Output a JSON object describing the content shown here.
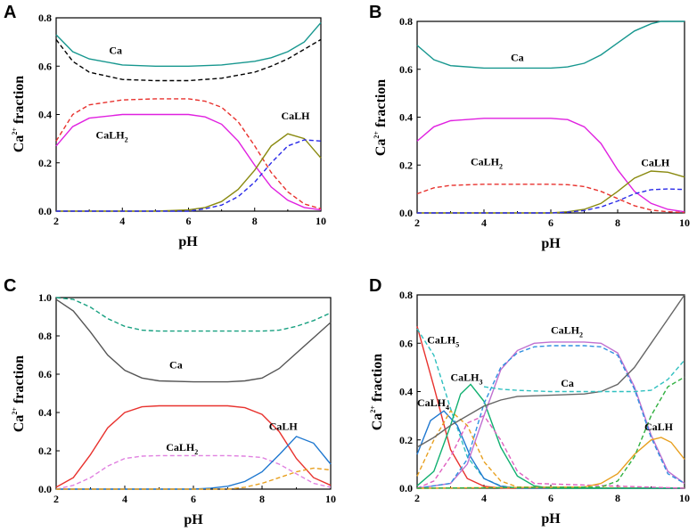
{
  "chart_data": [
    {
      "panel": "A",
      "type": "line",
      "xlabel": "pH",
      "ylabel": {
        "base": "Ca",
        "sup": "2+",
        "rest": " fraction"
      },
      "xlim": [
        2,
        10
      ],
      "ylim": [
        0,
        0.8
      ],
      "xticks": [
        "2",
        "4",
        "6",
        "8",
        "10"
      ],
      "yticks": [
        "0.0",
        "0.2",
        "0.4",
        "0.6",
        "0.8"
      ],
      "annotations": [
        {
          "base": "Ca",
          "sub": "",
          "x": 3.6,
          "y": 0.65
        },
        {
          "base": "CaLH",
          "sub": "2",
          "x": 3.2,
          "y": 0.3
        },
        {
          "base": "CaLH",
          "sub": "",
          "x": 8.8,
          "y": 0.38
        }
      ],
      "series": [
        {
          "name": "Ca",
          "color": "#17978f",
          "dash": false,
          "x": [
            2,
            2.5,
            3,
            4,
            5,
            6,
            7,
            8,
            8.5,
            9,
            9.5,
            10
          ],
          "y": [
            0.73,
            0.66,
            0.63,
            0.605,
            0.6,
            0.6,
            0.605,
            0.62,
            0.635,
            0.66,
            0.7,
            0.78
          ]
        },
        {
          "name": "Ca (dashed)",
          "color": "#000000",
          "dash": true,
          "x": [
            2,
            2.5,
            3,
            4,
            5,
            6,
            7,
            8,
            8.5,
            9,
            9.5,
            10
          ],
          "y": [
            0.71,
            0.62,
            0.575,
            0.545,
            0.54,
            0.54,
            0.55,
            0.575,
            0.6,
            0.63,
            0.67,
            0.71
          ]
        },
        {
          "name": "CaLH2",
          "color": "#e020e0",
          "dash": false,
          "x": [
            2,
            2.5,
            3,
            4,
            5,
            6,
            6.5,
            7,
            7.5,
            8,
            8.5,
            9,
            9.5,
            10
          ],
          "y": [
            0.27,
            0.35,
            0.385,
            0.4,
            0.4,
            0.4,
            0.39,
            0.36,
            0.29,
            0.19,
            0.1,
            0.045,
            0.015,
            0.005
          ]
        },
        {
          "name": "CaLH2 (dashed)",
          "color": "#e8322e",
          "dash": true,
          "x": [
            2,
            2.5,
            3,
            4,
            5,
            6,
            6.5,
            7,
            7.5,
            8,
            8.5,
            9,
            9.5,
            10
          ],
          "y": [
            0.29,
            0.4,
            0.44,
            0.46,
            0.465,
            0.465,
            0.455,
            0.43,
            0.37,
            0.27,
            0.16,
            0.08,
            0.03,
            0.01
          ]
        },
        {
          "name": "CaLH",
          "color": "#8a8a10",
          "dash": false,
          "x": [
            2,
            5,
            6,
            6.5,
            7,
            7.5,
            8,
            8.5,
            9,
            9.5,
            10
          ],
          "y": [
            0,
            0,
            0.005,
            0.015,
            0.04,
            0.09,
            0.17,
            0.27,
            0.32,
            0.3,
            0.22
          ]
        },
        {
          "name": "CaLH (dashed)",
          "color": "#2a2ae8",
          "dash": true,
          "x": [
            2,
            6,
            6.5,
            7,
            7.5,
            8,
            8.5,
            9,
            9.5,
            10
          ],
          "y": [
            0,
            0,
            0.01,
            0.025,
            0.06,
            0.12,
            0.2,
            0.27,
            0.295,
            0.29
          ]
        }
      ]
    },
    {
      "panel": "B",
      "type": "line",
      "xlabel": "pH",
      "ylabel": {
        "base": "Ca",
        "sup": "2+",
        "rest": " fraction"
      },
      "xlim": [
        2,
        10
      ],
      "ylim": [
        0,
        0.8
      ],
      "xticks": [
        "2",
        "4",
        "6",
        "8",
        "10"
      ],
      "yticks": [
        "0.0",
        "0.2",
        "0.4",
        "0.6",
        "0.8"
      ],
      "annotations": [
        {
          "base": "Ca",
          "sub": "",
          "x": 4.8,
          "y": 0.635
        },
        {
          "base": "CaLH",
          "sub": "2",
          "x": 3.6,
          "y": 0.2
        },
        {
          "base": "CaLH",
          "sub": "",
          "x": 8.7,
          "y": 0.195
        }
      ],
      "series": [
        {
          "name": "Ca",
          "color": "#17978f",
          "dash": false,
          "x": [
            2,
            2.5,
            3,
            4,
            5,
            6,
            6.5,
            7,
            7.5,
            8,
            8.5,
            9,
            9.3,
            10
          ],
          "y": [
            0.7,
            0.64,
            0.615,
            0.605,
            0.605,
            0.605,
            0.61,
            0.625,
            0.66,
            0.71,
            0.76,
            0.79,
            0.8,
            0.8
          ]
        },
        {
          "name": "CaLH2",
          "color": "#e020e0",
          "dash": false,
          "x": [
            2,
            2.5,
            3,
            4,
            5,
            6,
            6.5,
            7,
            7.5,
            8,
            8.5,
            9,
            9.5,
            10
          ],
          "y": [
            0.3,
            0.36,
            0.385,
            0.395,
            0.395,
            0.395,
            0.39,
            0.36,
            0.29,
            0.18,
            0.09,
            0.04,
            0.015,
            0.005
          ]
        },
        {
          "name": "CaLH2 (dashed)",
          "color": "#e8322e",
          "dash": true,
          "x": [
            2,
            2.5,
            3,
            4,
            5,
            6,
            6.5,
            7,
            7.5,
            8,
            8.5,
            9,
            9.5,
            10
          ],
          "y": [
            0.08,
            0.105,
            0.115,
            0.12,
            0.12,
            0.12,
            0.118,
            0.11,
            0.09,
            0.06,
            0.03,
            0.012,
            0.005,
            0.002
          ]
        },
        {
          "name": "CaLH",
          "color": "#8a8a10",
          "dash": false,
          "x": [
            2,
            6,
            6.5,
            7,
            7.5,
            8,
            8.5,
            9,
            9.5,
            10
          ],
          "y": [
            0,
            0,
            0.005,
            0.015,
            0.04,
            0.09,
            0.145,
            0.175,
            0.17,
            0.15
          ]
        },
        {
          "name": "CaLH (dashed)",
          "color": "#2a2ae8",
          "dash": true,
          "x": [
            2,
            6,
            6.5,
            7,
            7.5,
            8,
            8.5,
            9,
            9.5,
            10
          ],
          "y": [
            0,
            0,
            0.003,
            0.01,
            0.025,
            0.05,
            0.08,
            0.097,
            0.1,
            0.098
          ]
        }
      ]
    },
    {
      "panel": "C",
      "type": "line",
      "xlabel": "pH",
      "ylabel": {
        "base": "Ca",
        "sup": "2+",
        "rest": " fraction"
      },
      "xlim": [
        2,
        10
      ],
      "ylim": [
        0,
        1.0
      ],
      "xticks": [
        "2",
        "4",
        "6",
        "8",
        "10"
      ],
      "yticks": [
        "0.0",
        "0.2",
        "0.4",
        "0.6",
        "0.8",
        "1.0"
      ],
      "annotations": [
        {
          "base": "Ca",
          "sub": "",
          "x": 5.3,
          "y": 0.63
        },
        {
          "base": "CaLH",
          "sub": "2",
          "x": 5.2,
          "y": 0.2
        },
        {
          "base": "CaLH",
          "sub": "",
          "x": 8.2,
          "y": 0.31
        }
      ],
      "series": [
        {
          "name": "Ca",
          "color": "#555555",
          "dash": false,
          "x": [
            2,
            2.5,
            3,
            3.5,
            4,
            4.5,
            5,
            6,
            7,
            7.5,
            8,
            8.5,
            9,
            9.5,
            10
          ],
          "y": [
            0.99,
            0.93,
            0.82,
            0.7,
            0.62,
            0.58,
            0.565,
            0.56,
            0.56,
            0.565,
            0.58,
            0.63,
            0.71,
            0.79,
            0.87
          ]
        },
        {
          "name": "Ca (dashed)",
          "color": "#17a080",
          "dash": true,
          "x": [
            2,
            2.5,
            3,
            3.5,
            4,
            4.5,
            5,
            6,
            7,
            7.5,
            8,
            8.5,
            9,
            9.5,
            10
          ],
          "y": [
            1.0,
            0.99,
            0.95,
            0.89,
            0.85,
            0.83,
            0.825,
            0.825,
            0.825,
            0.825,
            0.825,
            0.83,
            0.85,
            0.88,
            0.92
          ]
        },
        {
          "name": "CaLH2",
          "color": "#e8322e",
          "dash": false,
          "x": [
            2,
            2.5,
            3,
            3.5,
            4,
            4.5,
            5,
            6,
            7,
            7.5,
            8,
            8.5,
            9,
            9.5,
            10
          ],
          "y": [
            0.01,
            0.06,
            0.18,
            0.32,
            0.4,
            0.43,
            0.435,
            0.435,
            0.435,
            0.425,
            0.39,
            0.3,
            0.16,
            0.06,
            0.02
          ]
        },
        {
          "name": "CaLH2 (dashed)",
          "color": "#e080e0",
          "dash": true,
          "x": [
            2,
            2.5,
            3,
            3.5,
            4,
            4.5,
            5,
            6,
            7,
            7.5,
            8,
            8.5,
            9,
            9.5,
            10
          ],
          "y": [
            0.0,
            0.02,
            0.06,
            0.12,
            0.16,
            0.172,
            0.175,
            0.175,
            0.175,
            0.172,
            0.165,
            0.13,
            0.08,
            0.03,
            0.01
          ]
        },
        {
          "name": "CaLH",
          "color": "#1f78d0",
          "dash": false,
          "x": [
            2,
            6,
            6.5,
            7,
            7.5,
            8,
            8.5,
            9,
            9.5,
            10
          ],
          "y": [
            0,
            0,
            0.005,
            0.015,
            0.04,
            0.09,
            0.18,
            0.275,
            0.24,
            0.13
          ]
        },
        {
          "name": "CaLH (dashed)",
          "color": "#e8a020",
          "dash": true,
          "x": [
            2,
            7,
            7.5,
            8,
            8.5,
            9,
            9.5,
            10
          ],
          "y": [
            0,
            0,
            0.01,
            0.03,
            0.06,
            0.09,
            0.11,
            0.1
          ]
        }
      ]
    },
    {
      "panel": "D",
      "type": "line",
      "xlabel": "pH",
      "ylabel": {
        "base": "Ca",
        "sup": "2+",
        "rest": " fraction"
      },
      "xlim": [
        2,
        10
      ],
      "ylim": [
        0,
        0.8
      ],
      "xticks": [
        "2",
        "4",
        "6",
        "8",
        "10"
      ],
      "yticks": [
        "0.0",
        "0.2",
        "0.4",
        "0.6",
        "0.8"
      ],
      "annotations": [
        {
          "base": "CaLH",
          "sub": "5",
          "x": 2.3,
          "y": 0.6
        },
        {
          "base": "CaLH",
          "sub": "4",
          "x": 2.0,
          "y": 0.34
        },
        {
          "base": "CaLH",
          "sub": "3",
          "x": 3.0,
          "y": 0.445
        },
        {
          "base": "CaLH",
          "sub": "2",
          "x": 6.0,
          "y": 0.64
        },
        {
          "base": "Ca",
          "sub": "",
          "x": 6.3,
          "y": 0.42
        },
        {
          "base": "CaLH",
          "sub": "",
          "x": 8.8,
          "y": 0.24
        }
      ],
      "series": [
        {
          "name": "CaLH5",
          "color": "#e8322e",
          "dash": false,
          "x": [
            2,
            2.5,
            3,
            3.5,
            4,
            4.5,
            5,
            10
          ],
          "y": [
            0.67,
            0.42,
            0.16,
            0.04,
            0.008,
            0.001,
            0,
            0
          ]
        },
        {
          "name": "CaLH5 (dashed)",
          "color": "#30c0c0",
          "dash": true,
          "x": [
            2,
            2.5,
            3,
            3.5,
            4,
            4.5,
            5,
            10
          ],
          "y": [
            0.66,
            0.55,
            0.33,
            0.13,
            0.04,
            0.01,
            0,
            0
          ]
        },
        {
          "name": "CaLH4",
          "color": "#1f78d0",
          "dash": false,
          "x": [
            2,
            2.4,
            2.8,
            3.2,
            3.6,
            4,
            4.5,
            5,
            10
          ],
          "y": [
            0.14,
            0.28,
            0.32,
            0.26,
            0.13,
            0.04,
            0.008,
            0.001,
            0
          ]
        },
        {
          "name": "CaLH4 (dashed)",
          "color": "#e8a020",
          "dash": true,
          "x": [
            2,
            2.5,
            3,
            3.5,
            4,
            4.5,
            5,
            10
          ],
          "y": [
            0.05,
            0.2,
            0.32,
            0.26,
            0.11,
            0.03,
            0.005,
            0
          ]
        },
        {
          "name": "CaLH3",
          "color": "#10b070",
          "dash": false,
          "x": [
            2,
            2.5,
            3,
            3.3,
            3.6,
            4,
            4.5,
            5,
            5.5,
            6,
            10
          ],
          "y": [
            0.01,
            0.07,
            0.26,
            0.39,
            0.43,
            0.36,
            0.17,
            0.05,
            0.01,
            0,
            0
          ]
        },
        {
          "name": "CaLH3 (dashed)",
          "color": "#e060c0",
          "dash": true,
          "x": [
            2,
            2.5,
            3,
            3.5,
            4,
            4.5,
            5,
            5.5,
            10
          ],
          "y": [
            0,
            0.03,
            0.13,
            0.27,
            0.3,
            0.2,
            0.07,
            0.02,
            0
          ]
        },
        {
          "name": "CaLH2",
          "color": "#c070d0",
          "dash": false,
          "x": [
            2,
            3,
            3.5,
            4,
            4.5,
            5,
            5.5,
            6,
            7,
            7.5,
            8,
            8.5,
            9,
            9.5,
            10
          ],
          "y": [
            0,
            0.02,
            0.1,
            0.3,
            0.49,
            0.57,
            0.6,
            0.605,
            0.605,
            0.6,
            0.56,
            0.42,
            0.22,
            0.07,
            0.02
          ]
        },
        {
          "name": "CaLH2 (dashed)",
          "color": "#3090e0",
          "dash": true,
          "x": [
            2,
            3,
            3.5,
            4,
            4.5,
            5,
            5.5,
            6,
            7,
            7.5,
            8,
            8.5,
            9,
            9.5,
            10
          ],
          "y": [
            0,
            0.02,
            0.12,
            0.35,
            0.5,
            0.56,
            0.585,
            0.59,
            0.59,
            0.585,
            0.55,
            0.41,
            0.21,
            0.06,
            0.02
          ]
        },
        {
          "name": "Ca",
          "color": "#666666",
          "dash": false,
          "x": [
            2,
            2.5,
            3,
            3.5,
            4,
            4.5,
            5,
            6,
            7,
            7.5,
            8,
            8.5,
            9,
            9.5,
            10
          ],
          "y": [
            0.17,
            0.21,
            0.26,
            0.3,
            0.34,
            0.365,
            0.38,
            0.385,
            0.39,
            0.4,
            0.43,
            0.5,
            0.6,
            0.7,
            0.8
          ]
        },
        {
          "name": "Ca (dashed)",
          "color": "#30c0c0",
          "dash": true,
          "x": [
            4,
            4.5,
            5,
            6,
            7,
            8,
            8.5,
            9,
            9.5,
            10
          ],
          "y": [
            0.42,
            0.41,
            0.405,
            0.4,
            0.4,
            0.4,
            0.4,
            0.405,
            0.45,
            0.53
          ]
        },
        {
          "name": "CaLH",
          "color": "#e8a020",
          "dash": false,
          "x": [
            2,
            7,
            7.5,
            8,
            8.5,
            9,
            9.3,
            9.6,
            10
          ],
          "y": [
            0,
            0.005,
            0.02,
            0.06,
            0.14,
            0.2,
            0.21,
            0.19,
            0.12
          ]
        },
        {
          "name": "CaLH (dashed)",
          "color": "#30b040",
          "dash": true,
          "x": [
            2,
            7.5,
            8,
            8.5,
            9,
            9.5,
            10
          ],
          "y": [
            0,
            0.005,
            0.03,
            0.13,
            0.3,
            0.42,
            0.46
          ]
        }
      ]
    }
  ]
}
